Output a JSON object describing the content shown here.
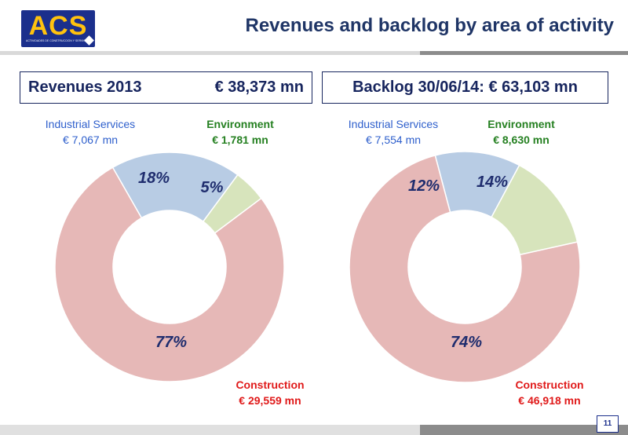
{
  "logo": {
    "text": "ACS",
    "subtext": "ACTIVIDADES DE CONSTRUCCIÓN Y SERVICIOS"
  },
  "title": "Revenues and backlog by area of activity",
  "colors": {
    "construction": "#e6b8b7",
    "industrial": "#b8cce4",
    "environment": "#d7e4bc",
    "label_industrial": "#2e5fcc",
    "label_environment": "#258021",
    "label_construction": "#e01a1a",
    "pct_text": "#1f2d6e"
  },
  "page_number": "11",
  "chart_data": [
    {
      "type": "pie",
      "title": "Revenues 2013",
      "total": "€ 38,373 mn",
      "categories": [
        "Industrial Services",
        "Environment",
        "Construction"
      ],
      "values": [
        7067,
        1781,
        29559
      ],
      "percent_labels": [
        "18%",
        "5%",
        "77%"
      ],
      "value_labels": [
        "€ 7,067 mn",
        "€ 1,781 mn",
        "€ 29,559 mn"
      ],
      "colors": [
        "#b8cce4",
        "#d7e4bc",
        "#e6b8b7"
      ]
    },
    {
      "type": "pie",
      "title": "Backlog 30/06/14: € 63,103 mn",
      "categories": [
        "Industrial Services",
        "Environment",
        "Construction"
      ],
      "values": [
        7554,
        8630,
        46918
      ],
      "percent_labels": [
        "12%",
        "14%",
        "74%"
      ],
      "value_labels": [
        "€ 7,554 mn",
        "€ 8,630 mn",
        "€ 46,918 mn"
      ],
      "colors": [
        "#b8cce4",
        "#d7e4bc",
        "#e6b8b7"
      ]
    }
  ]
}
